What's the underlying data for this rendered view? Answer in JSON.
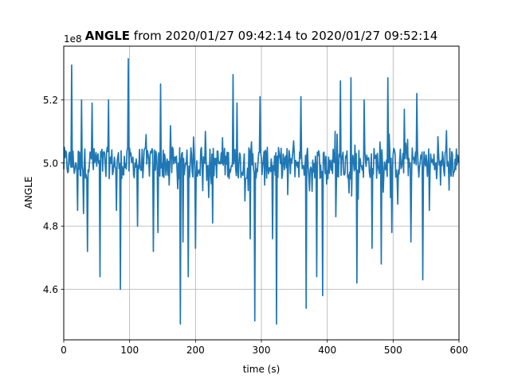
{
  "chart_data": {
    "type": "line",
    "title_bold": "ANGLE",
    "title_rest": " from 2020/01/27 09:42:14 to 2020/01/27 09:52:14",
    "xlabel": "time (s)",
    "ylabel": "ANGLE",
    "offset_label": "1e8",
    "xlim": [
      0,
      600
    ],
    "ylim": [
      4.44,
      5.37
    ],
    "y_scale_factor": 100000000,
    "xticks": [
      0,
      100,
      200,
      300,
      400,
      500,
      600
    ],
    "xtick_labels": [
      "0",
      "100",
      "200",
      "300",
      "400",
      "500",
      "600"
    ],
    "yticks": [
      4.6,
      4.8,
      5.0,
      5.2
    ],
    "ytick_labels": [
      "4.6",
      "4.8",
      "5.0",
      "5.2"
    ],
    "grid": true,
    "color": "#1f77b4",
    "series": [
      {
        "sample_interval_s": 1,
        "baseline": 5.0,
        "band_halfwidth": 0.05,
        "spikes": [
          [
            12,
            5.31
          ],
          [
            21,
            4.85
          ],
          [
            27,
            5.2
          ],
          [
            30,
            4.84
          ],
          [
            36,
            4.72
          ],
          [
            43,
            5.19
          ],
          [
            55,
            4.64
          ],
          [
            68,
            5.2
          ],
          [
            80,
            4.85
          ],
          [
            86,
            4.6
          ],
          [
            98,
            5.33
          ],
          [
            112,
            4.8
          ],
          [
            125,
            5.09
          ],
          [
            136,
            4.72
          ],
          [
            143,
            4.78
          ],
          [
            147,
            5.25
          ],
          [
            160,
            4.93
          ],
          [
            165,
            5.05
          ],
          [
            177,
            4.49
          ],
          [
            181,
            4.75
          ],
          [
            189,
            4.64
          ],
          [
            200,
            4.73
          ],
          [
            215,
            5.1
          ],
          [
            226,
            4.81
          ],
          [
            241,
            5.08
          ],
          [
            257,
            5.28
          ],
          [
            263,
            5.19
          ],
          [
            275,
            4.88
          ],
          [
            283,
            4.76
          ],
          [
            290,
            4.5
          ],
          [
            298,
            5.21
          ],
          [
            305,
            4.93
          ],
          [
            317,
            4.76
          ],
          [
            323,
            4.49
          ],
          [
            340,
            4.9
          ],
          [
            349,
            5.07
          ],
          [
            360,
            5.21
          ],
          [
            368,
            4.54
          ],
          [
            377,
            4.91
          ],
          [
            384,
            4.64
          ],
          [
            393,
            4.58
          ],
          [
            401,
            4.95
          ],
          [
            413,
            4.83
          ],
          [
            420,
            5.26
          ],
          [
            436,
            5.27
          ],
          [
            445,
            4.62
          ],
          [
            456,
            5.2
          ],
          [
            468,
            4.73
          ],
          [
            482,
            4.68
          ],
          [
            492,
            5.27
          ],
          [
            498,
            4.78
          ],
          [
            507,
            4.87
          ],
          [
            517,
            5.17
          ],
          [
            527,
            4.75
          ],
          [
            536,
            5.22
          ],
          [
            545,
            4.63
          ],
          [
            555,
            4.85
          ],
          [
            572,
            4.93
          ]
        ]
      }
    ]
  }
}
